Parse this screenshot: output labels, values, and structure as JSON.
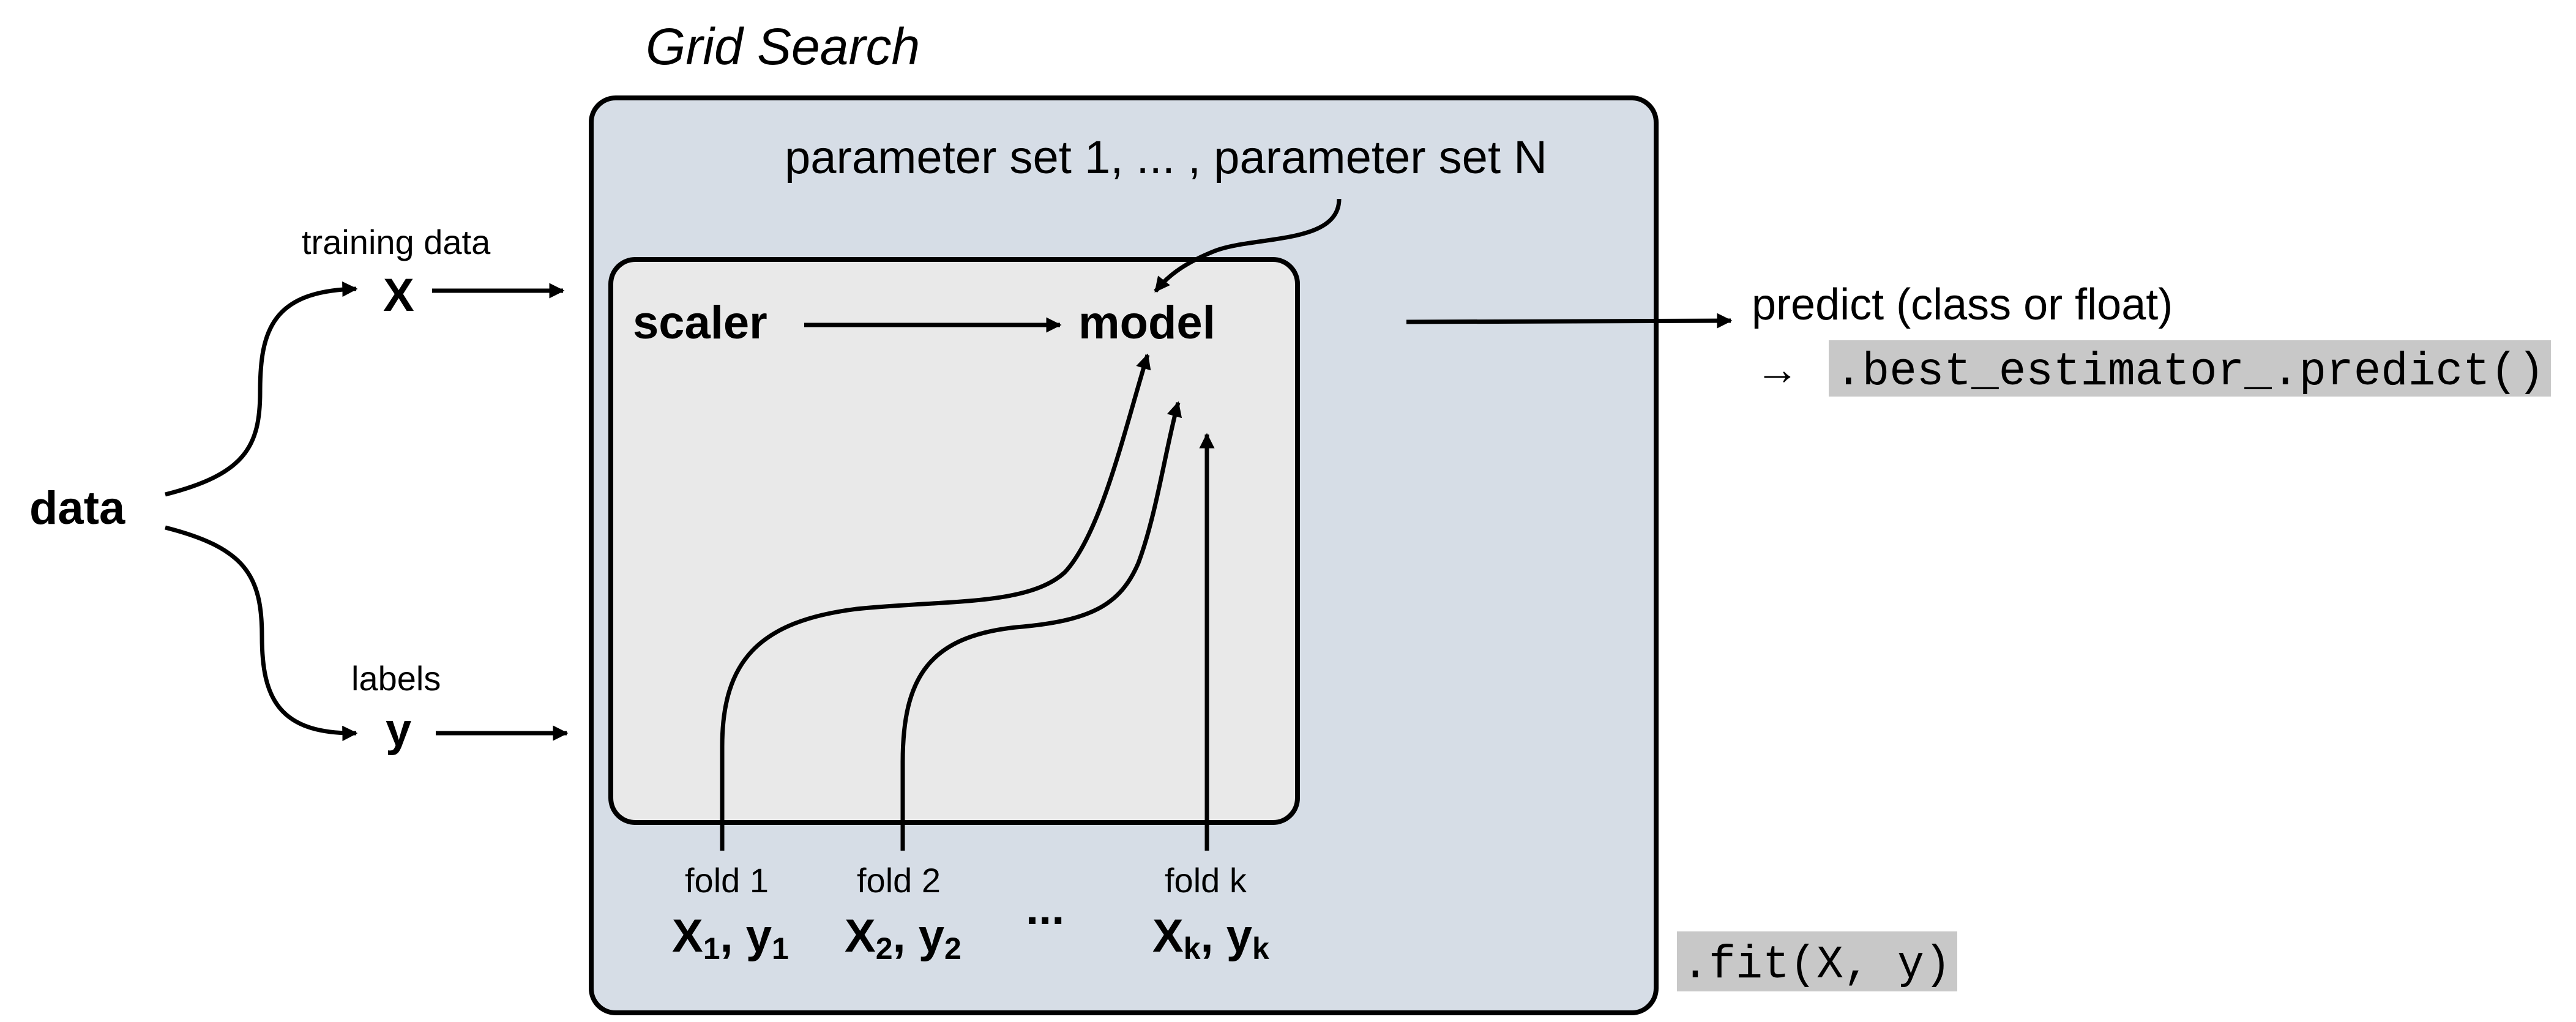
{
  "title": "Grid Search",
  "input": {
    "data_label": "data",
    "training_caption": "training data",
    "x_label": "X",
    "labels_caption": "labels",
    "y_label": "y"
  },
  "grid": {
    "params_label": "parameter set 1, ... , parameter set N",
    "pipeline": {
      "scaler_label": "scaler",
      "model_label": "model"
    },
    "folds": [
      {
        "caption": "fold 1",
        "x": "X",
        "y": "y",
        "sub": "1"
      },
      {
        "caption": "fold 2",
        "x": "X",
        "y": "y",
        "sub": "2"
      },
      {
        "caption": "fold k",
        "x": "X",
        "y": "y",
        "sub": "k"
      }
    ],
    "ellipsis": "..."
  },
  "output": {
    "predict_label": "predict (class or float)",
    "arrow_glyph": "→",
    "predict_code": ".best_estimator_.predict()",
    "fit_code": ".fit(X, y)"
  },
  "colors": {
    "outer_fill": "#d6dde6",
    "inner_fill": "#e9e9e9",
    "code_bg": "#c8c8c8",
    "stroke": "#000000"
  }
}
